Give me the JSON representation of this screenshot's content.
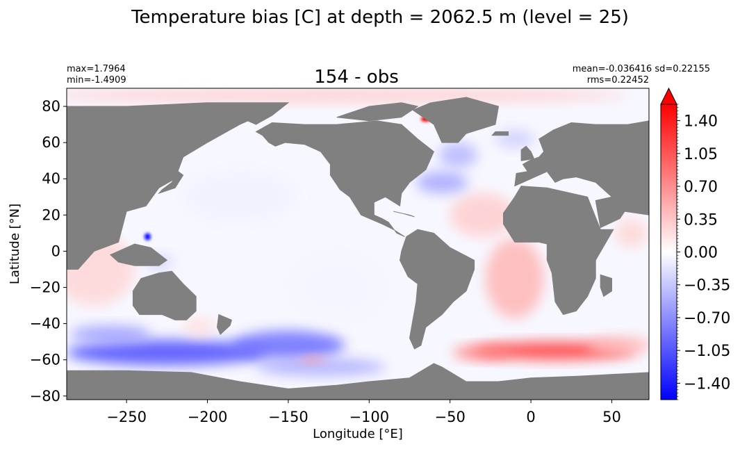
{
  "figure": {
    "suptitle": "Temperature bias [C] at depth = 2062.5 m (level = 25)"
  },
  "chart_data": {
    "type": "heatmap",
    "title": "154 - obs",
    "xlabel": "Longitude [°E]",
    "ylabel": "Latitude [°N]",
    "xlim": [
      -287,
      73
    ],
    "ylim": [
      -82,
      90
    ],
    "xticks": [
      -250,
      -200,
      -150,
      -100,
      -50,
      0,
      50
    ],
    "xtick_labels": [
      "−250",
      "−200",
      "−150",
      "−100",
      "−50",
      "0",
      "50"
    ],
    "yticks": [
      -80,
      -60,
      -40,
      -20,
      0,
      20,
      40,
      60,
      80
    ],
    "ytick_labels": [
      "−80",
      "−60",
      "−40",
      "−20",
      "0",
      "20",
      "40",
      "60",
      "80"
    ],
    "stats_left": [
      "max=1.7964",
      "min=-1.4909"
    ],
    "stats_right": [
      "mean=-0.036416 sd=0.22155",
      "rms=0.22452"
    ],
    "colorbar": {
      "vmin": -1.575,
      "vmax": 1.575,
      "extend": "max",
      "ticks": [
        -1.4,
        -1.05,
        -0.7,
        -0.35,
        0.0,
        0.35,
        0.7,
        1.05,
        1.4
      ],
      "tick_labels": [
        "−1.40",
        "−1.05",
        "−0.70",
        "−0.35",
        "0.00",
        "0.35",
        "0.70",
        "1.05",
        "1.40"
      ],
      "colormap": "bwr"
    },
    "colors": {
      "land": "#808080",
      "cold": "#0000ff",
      "neutral": "#ffffff",
      "warm": "#ff0000"
    },
    "land": [
      {
        "name": "north-america",
        "outline": [
          [
            -170,
            66
          ],
          [
            -160,
            71
          ],
          [
            -140,
            70
          ],
          [
            -120,
            70
          ],
          [
            -95,
            72
          ],
          [
            -80,
            70
          ],
          [
            -70,
            62
          ],
          [
            -60,
            55
          ],
          [
            -65,
            45
          ],
          [
            -75,
            38
          ],
          [
            -80,
            32
          ],
          [
            -81,
            25
          ],
          [
            -90,
            30
          ],
          [
            -97,
            27
          ],
          [
            -97,
            20
          ],
          [
            -92,
            18
          ],
          [
            -88,
            16
          ],
          [
            -83,
            10
          ],
          [
            -78,
            8
          ],
          [
            -85,
            12
          ],
          [
            -92,
            15
          ],
          [
            -105,
            20
          ],
          [
            -112,
            30
          ],
          [
            -118,
            34
          ],
          [
            -124,
            42
          ],
          [
            -124,
            48
          ],
          [
            -130,
            55
          ],
          [
            -140,
            59
          ],
          [
            -152,
            60
          ],
          [
            -158,
            58
          ],
          [
            -162,
            60
          ],
          [
            -166,
            64
          ]
        ]
      },
      {
        "name": "greenland",
        "outline": [
          [
            -55,
            60
          ],
          [
            -45,
            60
          ],
          [
            -40,
            65
          ],
          [
            -22,
            70
          ],
          [
            -20,
            80
          ],
          [
            -40,
            85
          ],
          [
            -62,
            82
          ],
          [
            -73,
            78
          ],
          [
            -60,
            70
          ]
        ]
      },
      {
        "name": "south-america",
        "outline": [
          [
            -77,
            8
          ],
          [
            -70,
            12
          ],
          [
            -60,
            10
          ],
          [
            -50,
            2
          ],
          [
            -35,
            -5
          ],
          [
            -35,
            -10
          ],
          [
            -40,
            -22
          ],
          [
            -48,
            -28
          ],
          [
            -55,
            -35
          ],
          [
            -65,
            -42
          ],
          [
            -68,
            -52
          ],
          [
            -72,
            -54
          ],
          [
            -75,
            -48
          ],
          [
            -73,
            -38
          ],
          [
            -71,
            -28
          ],
          [
            -70,
            -18
          ],
          [
            -76,
            -14
          ],
          [
            -81,
            -5
          ],
          [
            -80,
            0
          ]
        ]
      },
      {
        "name": "eurasia-east",
        "outline": [
          [
            -287,
            80
          ],
          [
            -287,
            -10
          ],
          [
            -280,
            -10
          ],
          [
            -270,
            0
          ],
          [
            -255,
            5
          ],
          [
            -250,
            22
          ],
          [
            -238,
            25
          ],
          [
            -230,
            35
          ],
          [
            -220,
            40
          ],
          [
            -215,
            52
          ],
          [
            -200,
            60
          ],
          [
            -188,
            66
          ],
          [
            -180,
            70
          ],
          [
            -175,
            72
          ],
          [
            -170,
            70
          ],
          [
            -160,
            75
          ],
          [
            -150,
            82
          ],
          [
            -200,
            82
          ],
          [
            -250,
            80
          ]
        ]
      },
      {
        "name": "africa",
        "outline": [
          [
            -17,
            15
          ],
          [
            -10,
            5
          ],
          [
            5,
            5
          ],
          [
            10,
            4
          ],
          [
            10,
            -5
          ],
          [
            13,
            -12
          ],
          [
            15,
            -28
          ],
          [
            20,
            -35
          ],
          [
            28,
            -33
          ],
          [
            35,
            -25
          ],
          [
            40,
            -15
          ],
          [
            40,
            -5
          ],
          [
            51,
            12
          ],
          [
            43,
            12
          ],
          [
            35,
            30
          ],
          [
            10,
            35
          ],
          [
            -6,
            36
          ],
          [
            -10,
            30
          ],
          [
            -17,
            21
          ]
        ]
      },
      {
        "name": "europe",
        "outline": [
          [
            -10,
            36
          ],
          [
            -9,
            43
          ],
          [
            -2,
            44
          ],
          [
            -5,
            48
          ],
          [
            -1,
            50
          ],
          [
            5,
            52
          ],
          [
            8,
            55
          ],
          [
            5,
            62
          ],
          [
            14,
            67
          ],
          [
            25,
            71
          ],
          [
            40,
            70
          ],
          [
            60,
            70
          ],
          [
            73,
            72
          ],
          [
            73,
            28
          ],
          [
            57,
            25
          ],
          [
            50,
            30
          ],
          [
            40,
            38
          ],
          [
            28,
            41
          ],
          [
            20,
            40
          ],
          [
            15,
            38
          ],
          [
            10,
            44
          ],
          [
            0,
            40
          ]
        ]
      },
      {
        "name": "india-arabia",
        "outline": [
          [
            43,
            13
          ],
          [
            55,
            18
          ],
          [
            58,
            22
          ],
          [
            73,
            20
          ],
          [
            73,
            35
          ],
          [
            50,
            30
          ],
          [
            40,
            28
          ]
        ]
      },
      {
        "name": "australia",
        "outline": [
          [
            -246,
            -22
          ],
          [
            -241,
            -15
          ],
          [
            -230,
            -12
          ],
          [
            -222,
            -11
          ],
          [
            -215,
            -18
          ],
          [
            -207,
            -25
          ],
          [
            -207,
            -33
          ],
          [
            -213,
            -38
          ],
          [
            -220,
            -38
          ],
          [
            -228,
            -35
          ],
          [
            -242,
            -35
          ],
          [
            -246,
            -30
          ]
        ]
      },
      {
        "name": "new-zealand",
        "outline": [
          [
            -193,
            -35
          ],
          [
            -185,
            -38
          ],
          [
            -186,
            -41
          ],
          [
            -192,
            -46
          ],
          [
            -194,
            -42
          ]
        ]
      },
      {
        "name": "antarctica",
        "outline": [
          [
            -287,
            -66
          ],
          [
            -250,
            -66
          ],
          [
            -210,
            -67
          ],
          [
            -180,
            -72
          ],
          [
            -150,
            -76
          ],
          [
            -120,
            -74
          ],
          [
            -100,
            -72
          ],
          [
            -75,
            -70
          ],
          [
            -60,
            -62
          ],
          [
            -55,
            -64
          ],
          [
            -40,
            -72
          ],
          [
            -20,
            -72
          ],
          [
            0,
            -70
          ],
          [
            30,
            -69
          ],
          [
            73,
            -67
          ],
          [
            73,
            -82
          ],
          [
            -287,
            -82
          ]
        ]
      },
      {
        "name": "arctic-archipelago",
        "outline": [
          [
            -120,
            74
          ],
          [
            -100,
            80
          ],
          [
            -80,
            82
          ],
          [
            -70,
            80
          ],
          [
            -80,
            74
          ],
          [
            -100,
            72
          ]
        ]
      },
      {
        "name": "indonesia",
        "outline": [
          [
            -260,
            -2
          ],
          [
            -245,
            4
          ],
          [
            -235,
            2
          ],
          [
            -225,
            -5
          ],
          [
            -230,
            -8
          ],
          [
            -245,
            -8
          ],
          [
            -255,
            -6
          ]
        ]
      },
      {
        "name": "madagascar",
        "outline": [
          [
            43,
            -13
          ],
          [
            50,
            -15
          ],
          [
            50,
            -22
          ],
          [
            45,
            -25
          ],
          [
            43,
            -20
          ]
        ]
      },
      {
        "name": "cuba",
        "outline": [
          [
            -85,
            22
          ],
          [
            -75,
            20
          ],
          [
            -72,
            19
          ],
          [
            -80,
            21
          ]
        ]
      },
      {
        "name": "japan",
        "outline": [
          [
            -230,
            32
          ],
          [
            -220,
            35
          ],
          [
            -215,
            42
          ],
          [
            -218,
            44
          ],
          [
            -222,
            38
          ],
          [
            -228,
            34
          ]
        ]
      },
      {
        "name": "iceland",
        "outline": [
          [
            -24,
            64
          ],
          [
            -14,
            64
          ],
          [
            -14,
            66
          ],
          [
            -22,
            66
          ]
        ]
      },
      {
        "name": "uk",
        "outline": [
          [
            -6,
            50
          ],
          [
            2,
            51
          ],
          [
            0,
            55
          ],
          [
            -3,
            58
          ],
          [
            -6,
            56
          ]
        ]
      }
    ],
    "anomalies": [
      {
        "name": "southern-ocean-cold",
        "lon": -225,
        "lat": -56,
        "rlon": 62,
        "rlat": 7,
        "value": -1.1
      },
      {
        "name": "southern-ocean-cold-2",
        "lon": -150,
        "lat": -52,
        "rlon": 35,
        "rlat": 8,
        "value": -0.9
      },
      {
        "name": "southern-ocean-cold-3",
        "lon": -260,
        "lat": -46,
        "rlon": 25,
        "rlat": 5,
        "value": -0.6
      },
      {
        "name": "pacific-sector-cold",
        "lon": -130,
        "lat": -64,
        "rlon": 40,
        "rlat": 5,
        "value": -0.5
      },
      {
        "name": "south-atlantic-warm-band",
        "lon": 15,
        "lat": -55,
        "rlon": 50,
        "rlat": 5,
        "value": 1.2
      },
      {
        "name": "weddell-warm",
        "lon": -30,
        "lat": -56,
        "rlon": 18,
        "rlat": 4,
        "value": 0.8
      },
      {
        "name": "indian-south-warm",
        "lon": 55,
        "lat": -52,
        "rlon": 20,
        "rlat": 5,
        "value": 0.4
      },
      {
        "name": "south-atlantic-warm",
        "lon": -10,
        "lat": -15,
        "rlon": 18,
        "rlat": 22,
        "value": 0.45
      },
      {
        "name": "north-atlantic-warm",
        "lon": -30,
        "lat": 20,
        "rlon": 20,
        "rlat": 12,
        "value": 0.3
      },
      {
        "name": "north-atlantic-cold",
        "lon": -55,
        "lat": 38,
        "rlon": 16,
        "rlat": 6,
        "value": -0.55
      },
      {
        "name": "labrador-cold",
        "lon": -45,
        "lat": 53,
        "rlon": 12,
        "rlat": 7,
        "value": -0.45
      },
      {
        "name": "nordic-cold",
        "lon": -10,
        "lat": 62,
        "rlon": 12,
        "rlat": 5,
        "value": -0.3
      },
      {
        "name": "arctic-warm",
        "lon": -120,
        "lat": 86,
        "rlon": 180,
        "rlat": 4,
        "value": 0.3
      },
      {
        "name": "arctic-red-spot",
        "lon": -65,
        "lat": 73,
        "rlon": 3,
        "rlat": 1.5,
        "value": 1.6
      },
      {
        "name": "philippine-cold-spot",
        "lon": -237,
        "lat": 8,
        "rlon": 2,
        "rlat": 2,
        "value": -1.5
      },
      {
        "name": "indian-ocean-warm",
        "lon": -270,
        "lat": -10,
        "rlon": 25,
        "rlat": 20,
        "value": 0.25
      },
      {
        "name": "arabian-sea-warm",
        "lon": 62,
        "lat": 10,
        "rlon": 10,
        "rlat": 8,
        "value": 0.25
      },
      {
        "name": "west-pacific-cold",
        "lon": -230,
        "lat": -6,
        "rlon": 8,
        "rlat": 4,
        "value": -0.3
      },
      {
        "name": "tasman-warm",
        "lon": -205,
        "lat": -42,
        "rlon": 10,
        "rlat": 5,
        "value": 0.2
      },
      {
        "name": "pacific-faint-cold",
        "lon": -180,
        "lat": 30,
        "rlon": 35,
        "rlat": 15,
        "value": -0.08
      },
      {
        "name": "se-pacific-faint-cold",
        "lon": -120,
        "lat": -20,
        "rlon": 30,
        "rlat": 20,
        "value": -0.06
      },
      {
        "name": "south-pacific-warm-spot",
        "lon": -135,
        "lat": -60,
        "rlon": 8,
        "rlat": 2,
        "value": 0.6
      }
    ]
  }
}
